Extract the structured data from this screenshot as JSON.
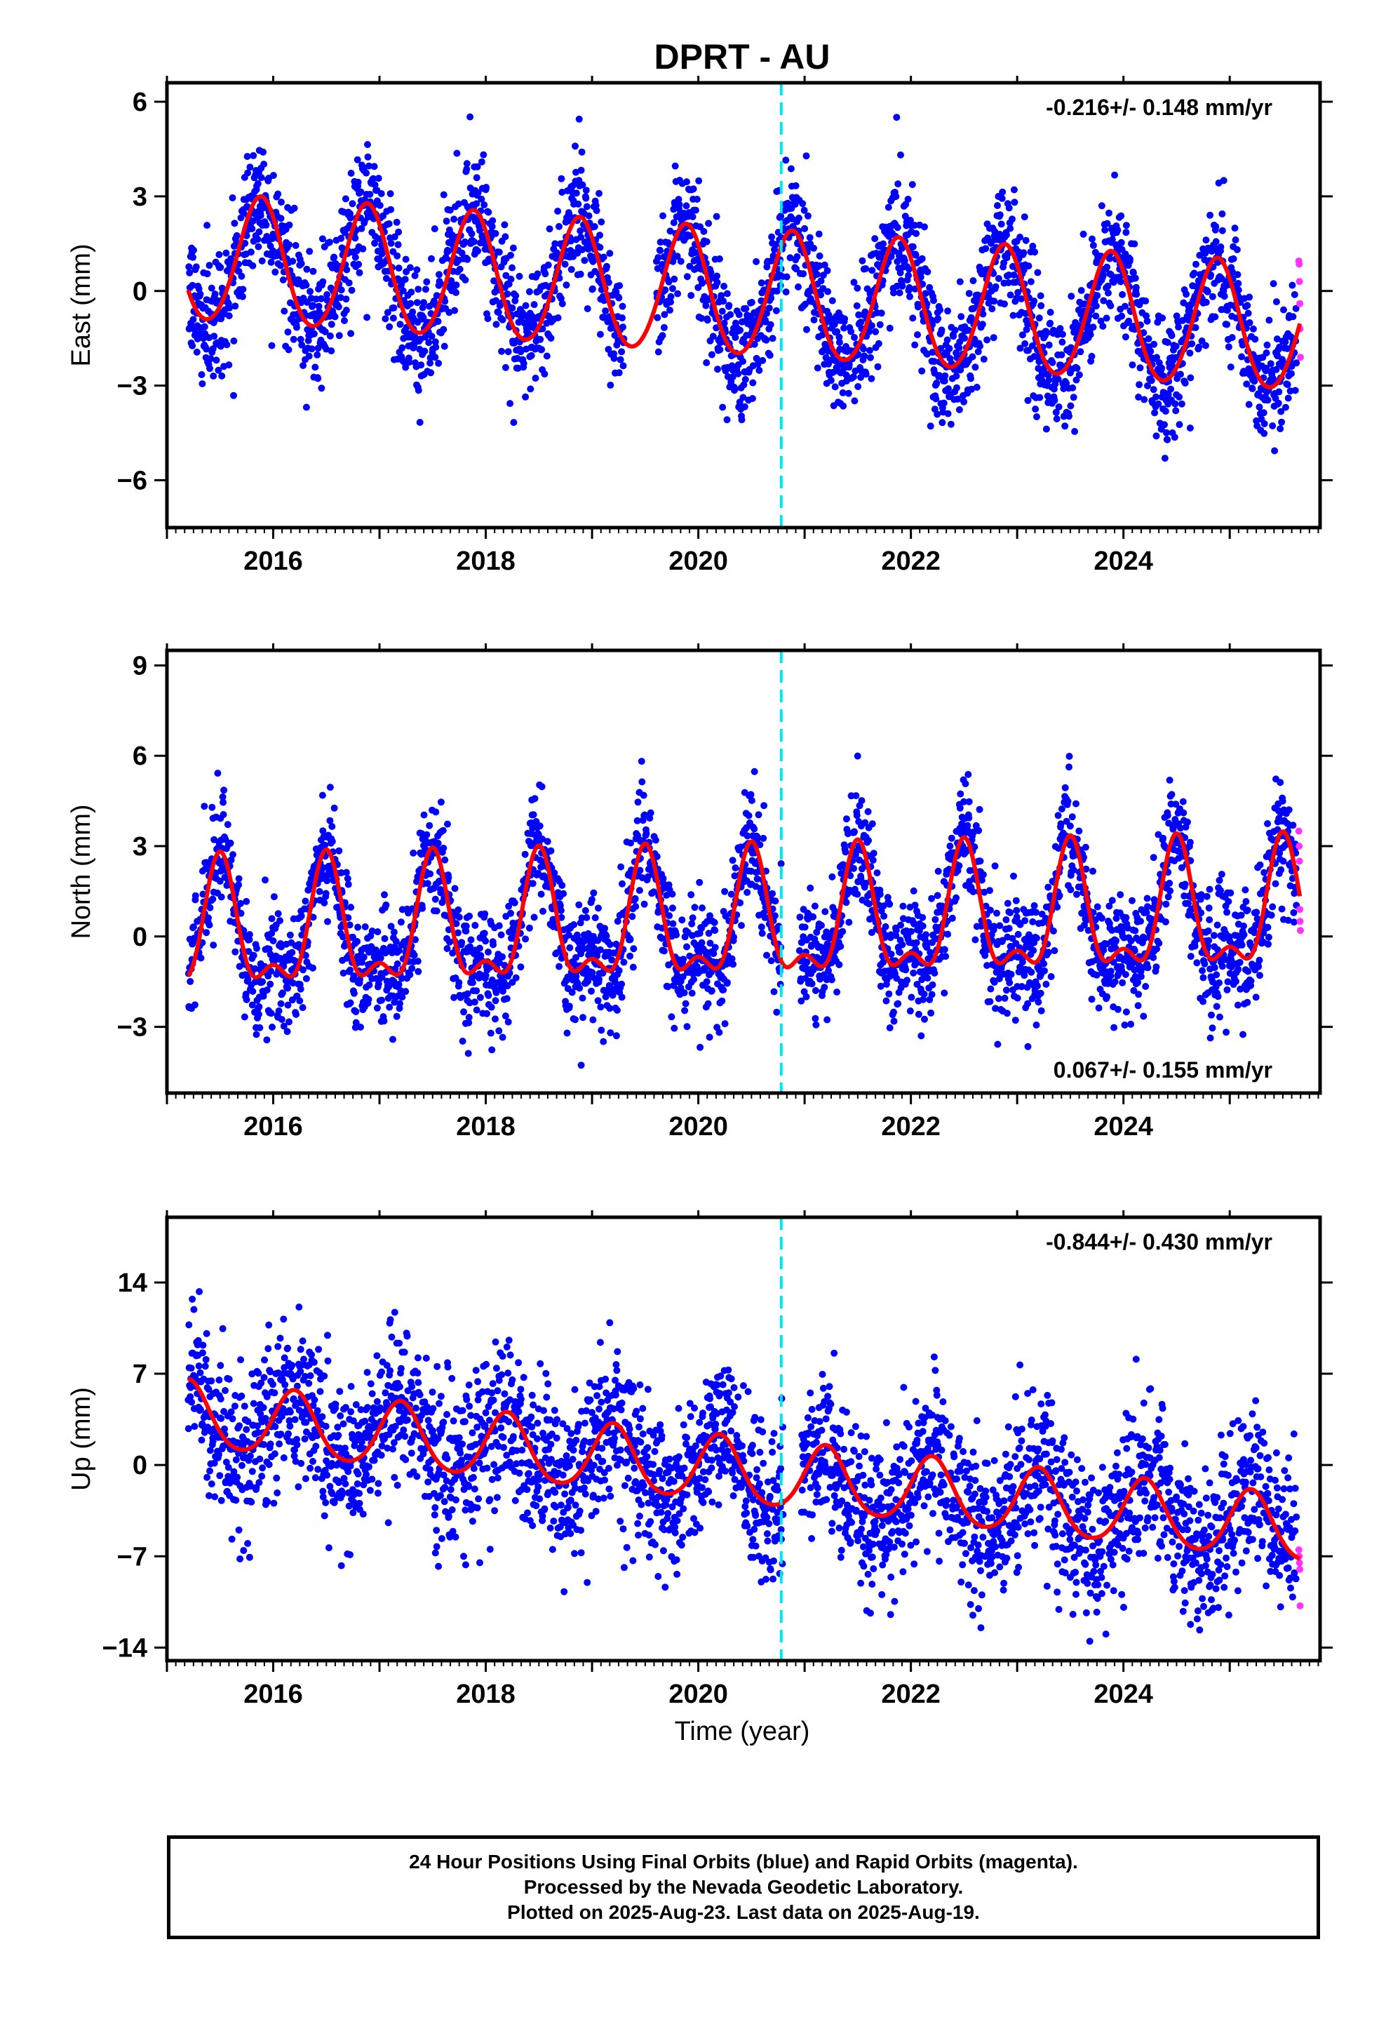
{
  "title": "DPRT - AU",
  "xlabel": "Time (year)",
  "colors": {
    "final_orbits": "#0000ff",
    "rapid_orbits": "#ff33ff",
    "model": "#ff0000",
    "event_line": "#00e5ee",
    "frame": "#000000"
  },
  "footer": {
    "line1": "24 Hour Positions Using Final Orbits (blue) and Rapid Orbits (magenta).",
    "line2": "Processed by the Nevada Geodetic Laboratory.",
    "line3": "Plotted on 2025-Aug-23. Last data on 2025-Aug-19."
  },
  "chart_data": [
    {
      "type": "scatter",
      "panel": "east",
      "ylabel": "East (mm)",
      "rate_label": "-0.216+/- 0.148 mm/yr",
      "rate_label_position": "top-right",
      "xlim": [
        2015.0,
        2025.85
      ],
      "ylim": [
        -7.5,
        6.6
      ],
      "yticks": [
        -6,
        -3,
        0,
        3,
        6
      ],
      "xticks": [
        2016,
        2018,
        2020,
        2022,
        2024
      ],
      "event_line_x": 2020.78,
      "data_start": 2015.2,
      "data_end": 2025.63,
      "gap": [
        2019.3,
        2019.6
      ],
      "model": {
        "trend_mm_per_yr": -0.216,
        "offset_at_start": 1.0,
        "annual_amplitude": 2.0,
        "annual_peak_phase": 0.88,
        "semiannual_amplitude": 0.15,
        "semiannual_peak_phase": 0.9
      },
      "scatter_std": 1.0,
      "n_points": 3300,
      "rapid_points": [
        0.95,
        0.85,
        0.3,
        -0.4,
        -1.2,
        -2.1
      ]
    },
    {
      "type": "scatter",
      "panel": "north",
      "ylabel": "North (mm)",
      "rate_label": "0.067+/- 0.155 mm/yr",
      "rate_label_position": "bottom-right",
      "xlim": [
        2015.0,
        2025.85
      ],
      "ylim": [
        -5.2,
        9.5
      ],
      "yticks": [
        -3,
        0,
        3,
        6,
        9
      ],
      "xticks": [
        2016,
        2018,
        2020,
        2022,
        2024
      ],
      "event_line_x": 2020.78,
      "data_start": 2015.2,
      "data_end": 2025.63,
      "gap": [
        2020.78,
        2020.95
      ],
      "model": {
        "trend_mm_per_yr": 0.067,
        "offset_at_start": 0.0,
        "annual_amplitude": 1.9,
        "annual_peak_phase": 0.5,
        "semiannual_amplitude": 0.9,
        "semiannual_peak_phase": 0.5
      },
      "scatter_std": 0.95,
      "n_points": 3300,
      "rapid_points": [
        3.5,
        3.0,
        2.5,
        0.9,
        0.5,
        0.2
      ]
    },
    {
      "type": "scatter",
      "panel": "up",
      "ylabel": "Up (mm)",
      "rate_label": "-0.844+/- 0.430 mm/yr",
      "rate_label_position": "top-right",
      "xlim": [
        2015.0,
        2025.85
      ],
      "ylim": [
        -15.0,
        19.0
      ],
      "yticks": [
        -14,
        -7,
        0,
        7,
        14
      ],
      "xticks": [
        2016,
        2018,
        2020,
        2022,
        2024
      ],
      "event_line_x": 2020.78,
      "data_start": 2015.2,
      "data_end": 2025.63,
      "gap": [
        2020.8,
        2020.97
      ],
      "model": {
        "trend_mm_per_yr": -0.844,
        "offset_at_start": 3.8,
        "annual_amplitude": 2.5,
        "annual_peak_phase": 0.2,
        "semiannual_amplitude": 0.3,
        "semiannual_peak_phase": 0.2
      },
      "scatter_std": 3.0,
      "n_points": 3300,
      "rapid_points": [
        -6.5,
        -7.0,
        -7.5,
        -8.0,
        -10.8
      ]
    }
  ]
}
